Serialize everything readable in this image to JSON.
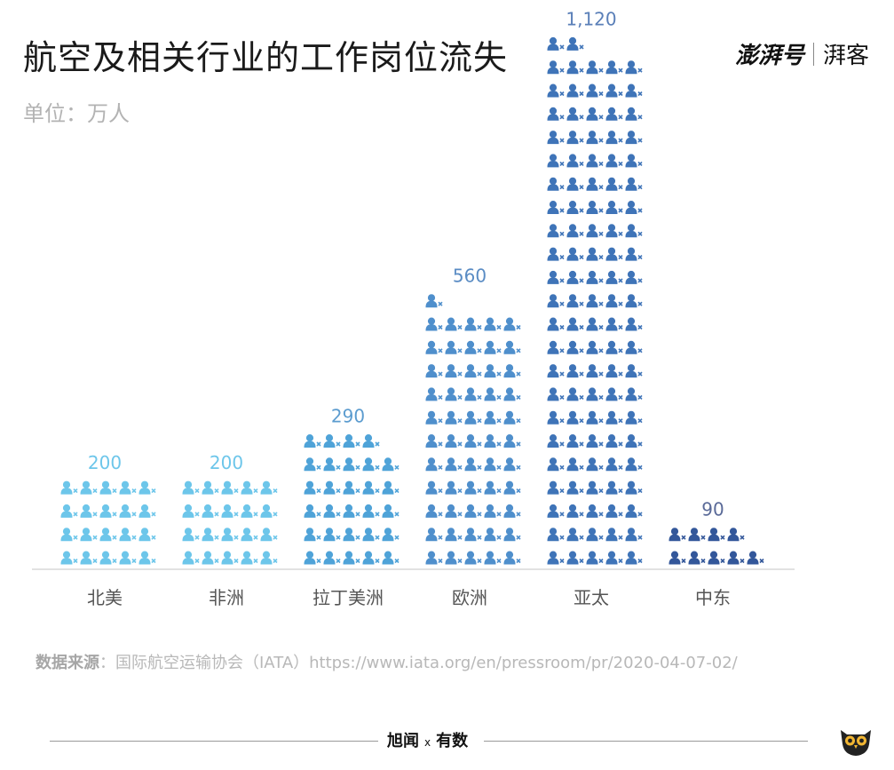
{
  "header": {
    "title": "航空及相关行业的工作岗位流失",
    "unit": "单位：万人",
    "brand_main": "澎湃号",
    "brand_sub": "湃客"
  },
  "chart_data": {
    "type": "bar",
    "title": "航空及相关行业的工作岗位流失",
    "ylabel": "单位：万人",
    "categories": [
      "北美",
      "非洲",
      "拉丁美洲",
      "欧洲",
      "亚太",
      "中东"
    ],
    "values": [
      200,
      200,
      290,
      560,
      1120,
      90
    ],
    "value_labels": [
      "200",
      "200",
      "290",
      "560",
      "1,120",
      "90"
    ],
    "icon_unit": 10,
    "icon_name": "person-x-icon",
    "colors": [
      "#6dc6ea",
      "#6dc6ea",
      "#4fa3d8",
      "#4f8fcc",
      "#3f74b8",
      "#33579a"
    ],
    "label_color": [
      "#6dc6ea",
      "#6dc6ea",
      "#5c9ccf",
      "#5a8cc4",
      "#5a7fb8",
      "#5a6a98"
    ]
  },
  "source": {
    "label": "数据来源",
    "text": "：国际航空运输协会（IATA）https://www.iata.org/en/pressroom/pr/2020-04-07-02/"
  },
  "footer": {
    "logo_left": "旭闻",
    "logo_x": "x",
    "logo_right": "有数"
  }
}
